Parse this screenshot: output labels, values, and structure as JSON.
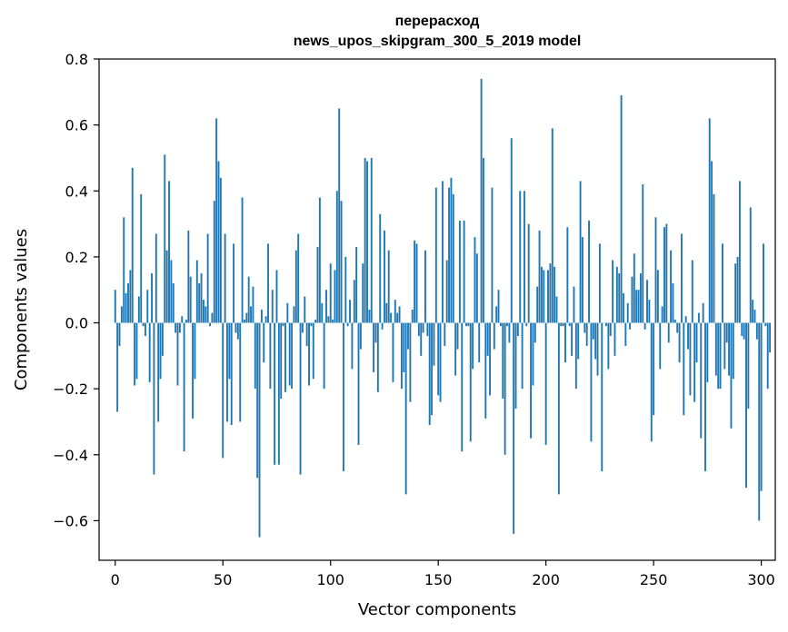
{
  "chart_data": {
    "type": "bar",
    "title": "перерасход",
    "subtitle": "news_upos_skipgram_300_5_2019 model",
    "xlabel": "Vector components",
    "ylabel": "Components values",
    "xlim": [
      -7.5,
      306.5
    ],
    "ylim": [
      -0.72,
      0.8
    ],
    "xticks": [
      0,
      50,
      100,
      150,
      200,
      250,
      300
    ],
    "yticks": [
      -0.6,
      -0.4,
      -0.2,
      0.0,
      0.2,
      0.4,
      0.6,
      0.8
    ],
    "ytick_labels": [
      "−0.6",
      "−0.4",
      "−0.2",
      "0.0",
      "0.2",
      "0.4",
      "0.6",
      "0.8"
    ],
    "grid": false,
    "color": "#1f77b4",
    "values": [
      0.1,
      -0.27,
      -0.07,
      0.05,
      0.32,
      0.09,
      0.12,
      0.16,
      0.47,
      -0.19,
      -0.17,
      0.08,
      0.39,
      -0.01,
      -0.04,
      0.1,
      -0.18,
      0.15,
      -0.46,
      0.27,
      -0.3,
      -0.17,
      -0.1,
      0.51,
      0.22,
      0.43,
      0.19,
      0.12,
      -0.03,
      -0.19,
      -0.03,
      0.02,
      -0.39,
      0.01,
      0.28,
      0.14,
      -0.29,
      -0.17,
      0.19,
      0.12,
      0.15,
      0.07,
      0.05,
      0.27,
      -0.01,
      0.03,
      0.37,
      0.62,
      0.49,
      0.44,
      -0.41,
      0.27,
      -0.3,
      -0.17,
      -0.31,
      0.24,
      -0.03,
      -0.05,
      -0.3,
      0.38,
      0.01,
      0.03,
      0.14,
      0.05,
      0.11,
      -0.2,
      -0.47,
      -0.65,
      0.04,
      -0.12,
      0.02,
      0.24,
      -0.2,
      0.1,
      -0.43,
      0.16,
      -0.43,
      -0.23,
      -0.01,
      -0.21,
      0.06,
      -0.19,
      -0.2,
      0.05,
      0.22,
      0.27,
      -0.46,
      -0.03,
      0.08,
      -0.07,
      -0.19,
      -0.01,
      -0.17,
      0.01,
      0.23,
      0.38,
      0.06,
      -0.2,
      0.1,
      0.02,
      0.18,
      0.01,
      0.16,
      0.4,
      0.65,
      0.37,
      -0.45,
      0.2,
      -0.01,
      0.07,
      -0.14,
      0.13,
      0.23,
      -0.37,
      -0.08,
      0.18,
      0.5,
      0.49,
      0.04,
      0.5,
      -0.15,
      -0.06,
      -0.21,
      0.33,
      -0.02,
      0.28,
      0.06,
      0.22,
      0.03,
      -0.18,
      0.07,
      0.03,
      0.05,
      -0.2,
      -0.15,
      -0.52,
      -0.08,
      -0.24,
      0.04,
      0.25,
      0.24,
      -0.04,
      -0.1,
      -0.03,
      0.22,
      -0.04,
      -0.31,
      -0.28,
      -0.13,
      0.41,
      -0.22,
      -0.24,
      0.43,
      -0.07,
      0.19,
      0.41,
      0.44,
      0.39,
      -0.16,
      -0.08,
      0.31,
      -0.39,
      0.31,
      -0.01,
      -0.01,
      -0.36,
      -0.14,
      0.26,
      0.21,
      -0.12,
      0.74,
      0.5,
      -0.29,
      -0.1,
      -0.22,
      0.41,
      -0.08,
      0.05,
      0.1,
      -0.01,
      -0.23,
      -0.4,
      -0.01,
      -0.06,
      0.56,
      -0.64,
      -0.26,
      -0.04,
      0.4,
      -0.2,
      0.4,
      -0.01,
      0.3,
      -0.35,
      -0.19,
      -0.06,
      0.11,
      0.28,
      0.17,
      0.16,
      -0.37,
      0.16,
      0.18,
      0.59,
      0.17,
      0.08,
      -0.52,
      -0.01,
      -0.01,
      -0.12,
      0.29,
      -0.01,
      -0.1,
      0.11,
      -0.2,
      -0.11,
      0.43,
      0.26,
      -0.03,
      -0.07,
      0.31,
      -0.36,
      -0.05,
      -0.11,
      -0.16,
      0.24,
      -0.45,
      0.0,
      -0.01,
      -0.14,
      -0.04,
      0.19,
      -0.1,
      0.17,
      0.15,
      0.69,
      0.09,
      -0.07,
      0.06,
      -0.02,
      0.14,
      0.21,
      0.1,
      0.1,
      0.15,
      0.42,
      -0.02,
      0.13,
      0.07,
      -0.36,
      -0.28,
      0.32,
      0.16,
      -0.14,
      0.05,
      0.29,
      0.3,
      -0.06,
      0.22,
      0.12,
      0.01,
      -0.03,
      -0.12,
      0.27,
      -0.28,
      0.02,
      -0.08,
      -0.22,
      0.19,
      -0.24,
      -0.12,
      0.03,
      -0.35,
      0.06,
      -0.45,
      -0.18,
      0.62,
      0.49,
      0.39,
      -0.16,
      -0.2,
      -0.2,
      0.24,
      -0.14,
      -0.06,
      -0.16,
      -0.32,
      -0.17,
      0.18,
      0.2,
      0.43,
      -0.04,
      -0.05,
      -0.5,
      -0.26,
      0.35,
      0.07,
      0.04,
      -0.05,
      -0.6,
      -0.51,
      0.24,
      -0.01,
      -0.2,
      -0.09
    ]
  }
}
